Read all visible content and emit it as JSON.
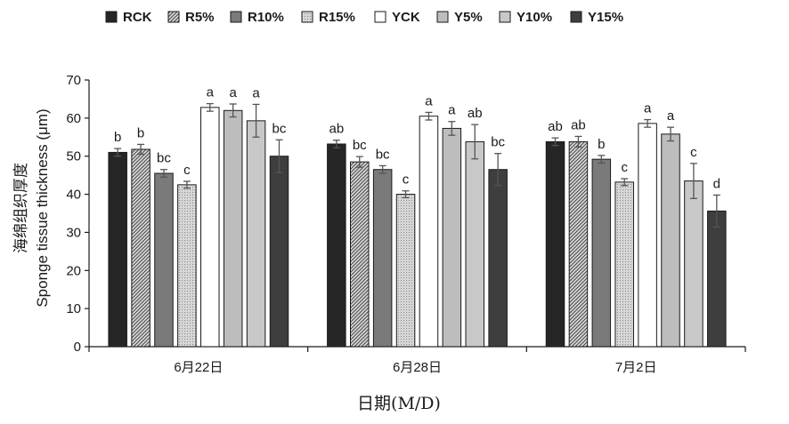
{
  "chart_data": {
    "type": "bar",
    "title": "",
    "xlabel": "日期(M/D)",
    "ylabel_lines": [
      "海绵组织厚度",
      "Sponge tissue thickness (μm)"
    ],
    "ylim": [
      0,
      70
    ],
    "yticks": [
      "0",
      "10",
      "20",
      "30",
      "40",
      "50",
      "60",
      "70"
    ],
    "categories": [
      "6月22日",
      "6月28日",
      "7月2日"
    ],
    "legend_position": "top",
    "grid": false,
    "series": [
      {
        "name": "RCK",
        "color": "#262626",
        "pattern": "solid",
        "values": [
          51,
          53.2,
          53.8
        ],
        "errors": [
          1.0,
          1.0,
          1.0
        ],
        "sig": [
          "b",
          "ab",
          "ab"
        ]
      },
      {
        "name": "R5%",
        "color": "#5a5a5a",
        "pattern": "hatch",
        "values": [
          51.8,
          48.5,
          53.8
        ],
        "errors": [
          1.3,
          1.4,
          1.4
        ],
        "sig": [
          "b",
          "bc",
          "ab"
        ]
      },
      {
        "name": "R10%",
        "color": "#7a7a7a",
        "pattern": "solid",
        "values": [
          45.5,
          46.5,
          49.2
        ],
        "errors": [
          1.0,
          1.0,
          1.0
        ],
        "sig": [
          "bc",
          "bc",
          "b"
        ]
      },
      {
        "name": "R15%",
        "color": "#c4c4c4",
        "pattern": "dots",
        "values": [
          42.5,
          40,
          43.2
        ],
        "errors": [
          0.9,
          0.9,
          0.9
        ],
        "sig": [
          "c",
          "c",
          "c"
        ]
      },
      {
        "name": "YCK",
        "color": "#ffffff",
        "pattern": "solid",
        "values": [
          62.8,
          60.5,
          58.6
        ],
        "errors": [
          1.0,
          1.0,
          1.0
        ],
        "sig": [
          "a",
          "a",
          "a"
        ]
      },
      {
        "name": "Y5%",
        "color": "#bdbdbd",
        "pattern": "solid",
        "values": [
          62,
          57.3,
          55.8
        ],
        "errors": [
          1.7,
          1.8,
          1.8
        ],
        "sig": [
          "a",
          "a",
          "a"
        ]
      },
      {
        "name": "Y10%",
        "color": "#c8c8c8",
        "pattern": "solid",
        "values": [
          59.3,
          53.8,
          43.5
        ],
        "errors": [
          4.3,
          4.5,
          4.6
        ],
        "sig": [
          "a",
          "ab",
          "c"
        ]
      },
      {
        "name": "Y15%",
        "color": "#3e3e3e",
        "pattern": "solid",
        "values": [
          50,
          46.5,
          35.6
        ],
        "errors": [
          4.3,
          4.2,
          4.2
        ],
        "sig": [
          "bc",
          "bc",
          "d"
        ]
      }
    ]
  }
}
